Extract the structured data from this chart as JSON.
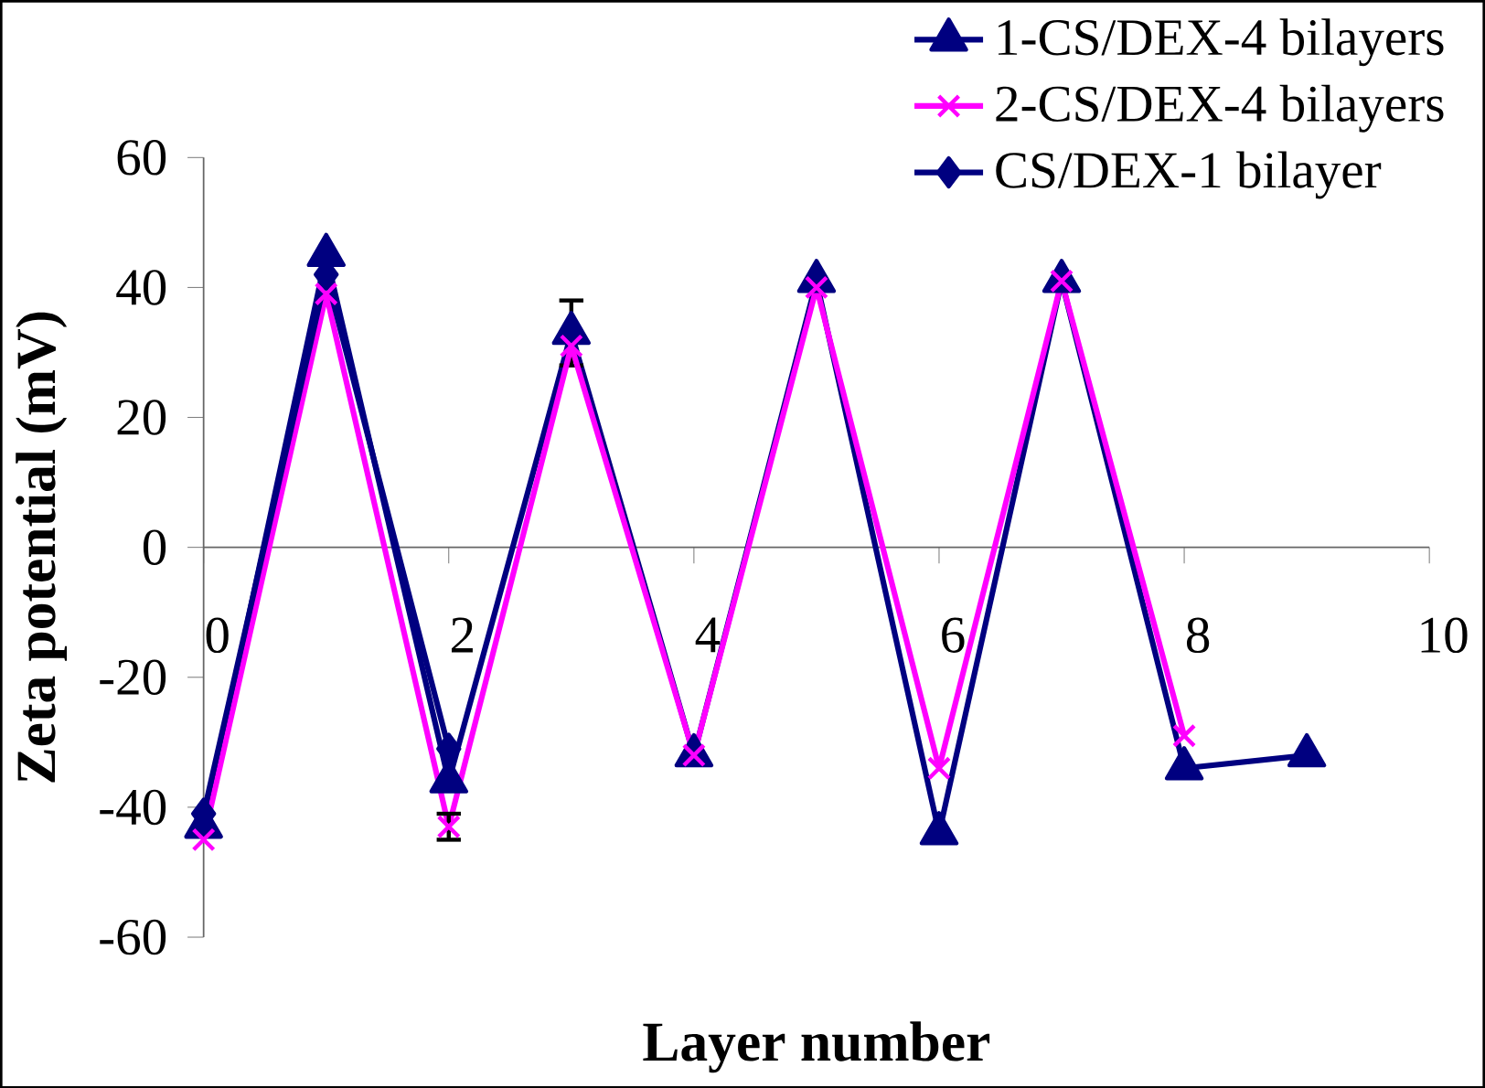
{
  "chart_data": {
    "type": "line",
    "xlabel": "Layer number",
    "ylabel": "Zeta potential (mV)",
    "xlim": [
      0,
      10
    ],
    "ylim": [
      -60,
      60
    ],
    "xticks": [
      0,
      2,
      4,
      6,
      8,
      10
    ],
    "yticks": [
      -60,
      -40,
      -20,
      0,
      20,
      40,
      60
    ],
    "grid": false,
    "legend": "top right",
    "line_style": "solid",
    "series": [
      {
        "name": "1-CS/DEX-4 bilayers",
        "color": "#000080",
        "marker": "triangle",
        "x": [
          0,
          1,
          2,
          3,
          4,
          5,
          6,
          7,
          8,
          9
        ],
        "values": [
          -43,
          45,
          -36,
          33,
          -32,
          41,
          -44,
          41,
          -34,
          -32
        ],
        "errors": [
          null,
          null,
          null,
          5,
          null,
          null,
          null,
          null,
          null,
          null
        ]
      },
      {
        "name": "2-CS/DEX-4 bilayers",
        "color": "#ff00ff",
        "marker": "cross",
        "x": [
          0,
          1,
          2,
          3,
          4,
          5,
          6,
          7,
          8
        ],
        "values": [
          -45,
          39,
          -43,
          31,
          -32,
          40,
          -34,
          41,
          -29
        ],
        "errors": [
          null,
          null,
          2,
          null,
          null,
          null,
          null,
          null,
          null
        ]
      },
      {
        "name": "CS/DEX-1 bilayer",
        "color": "#000080",
        "marker": "diamond",
        "x": [
          0,
          1,
          2
        ],
        "values": [
          -41,
          42,
          -31
        ]
      }
    ]
  }
}
